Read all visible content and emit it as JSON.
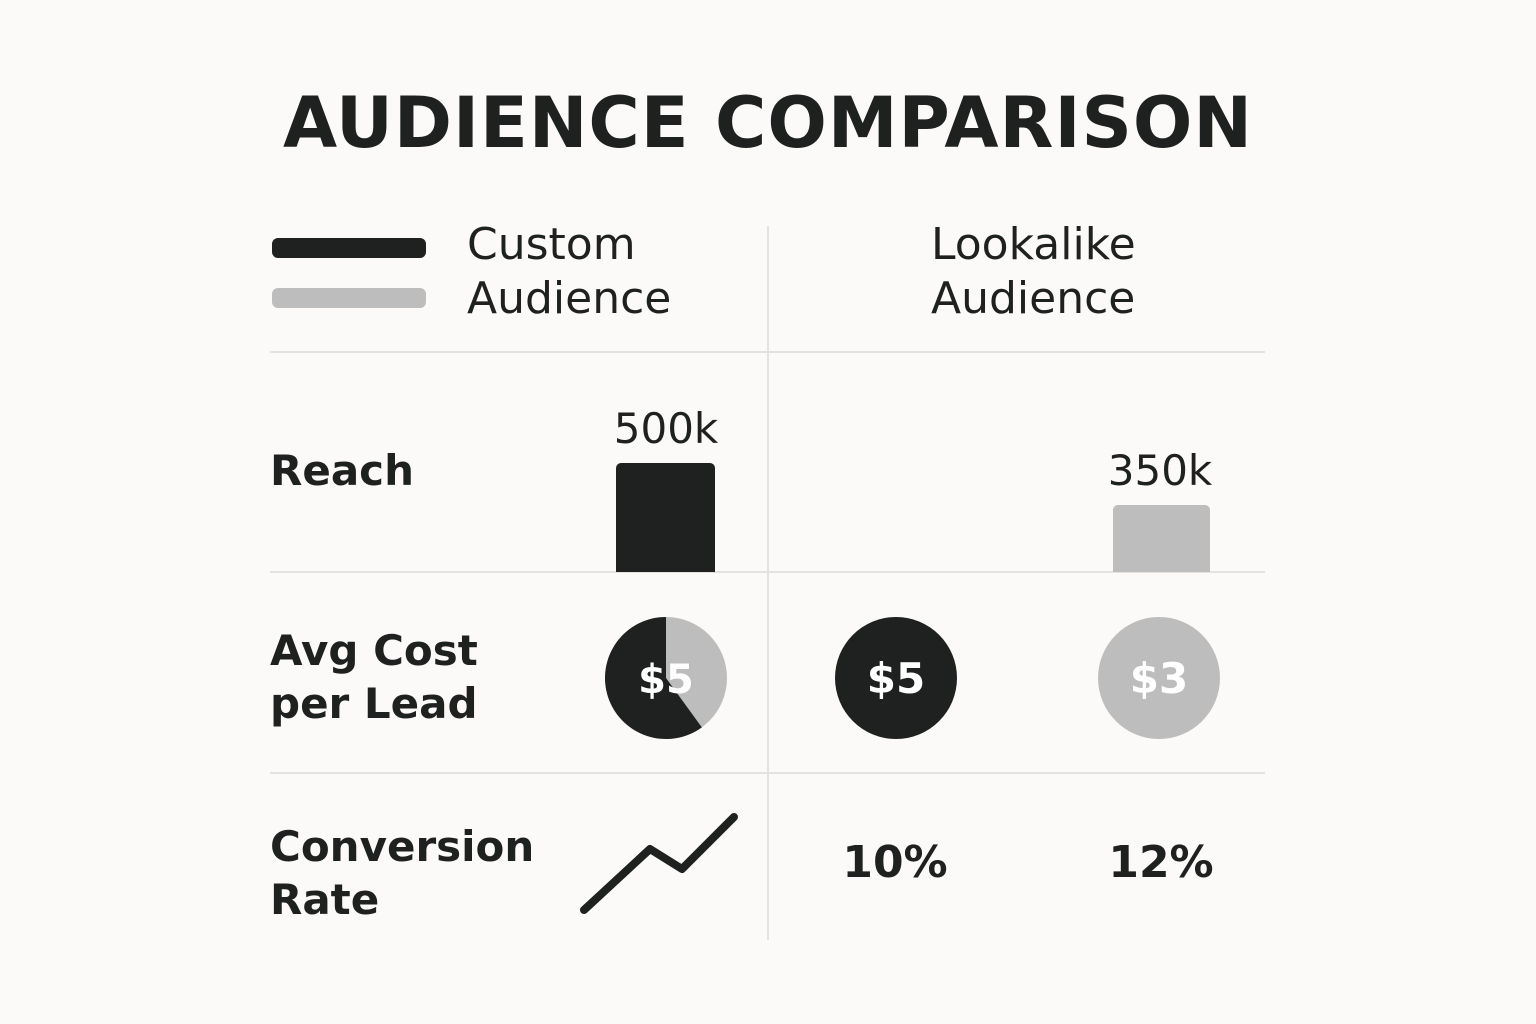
{
  "title": "AUDIENCE COMPARISON",
  "legend": {
    "custom": {
      "line1": "Custom",
      "line2": "Audience",
      "color": "#1f2121"
    },
    "lookalike": {
      "line1": "Lookalike",
      "line2": "Audience",
      "color": "#bdbdbd"
    }
  },
  "rows": {
    "reach": {
      "label": "Reach",
      "custom_value": "500k",
      "lookalike_value": "350k",
      "custom_number": 500,
      "lookalike_number": 350
    },
    "cost": {
      "label_line1": "Avg Cost",
      "label_line2": "per Lead",
      "pie_label": "$5",
      "pie_dark_fraction": 0.6,
      "custom_value": "$5",
      "lookalike_value": "$3"
    },
    "conversion": {
      "label_line1": "Conversion",
      "label_line2": "Rate",
      "icon": "trend-line-icon",
      "custom_value": "10%",
      "lookalike_value": "12%"
    }
  },
  "colors": {
    "dark": "#1f2121",
    "light": "#bdbdbd",
    "divider": "#e3e2e0",
    "background": "#fbfaf8"
  }
}
